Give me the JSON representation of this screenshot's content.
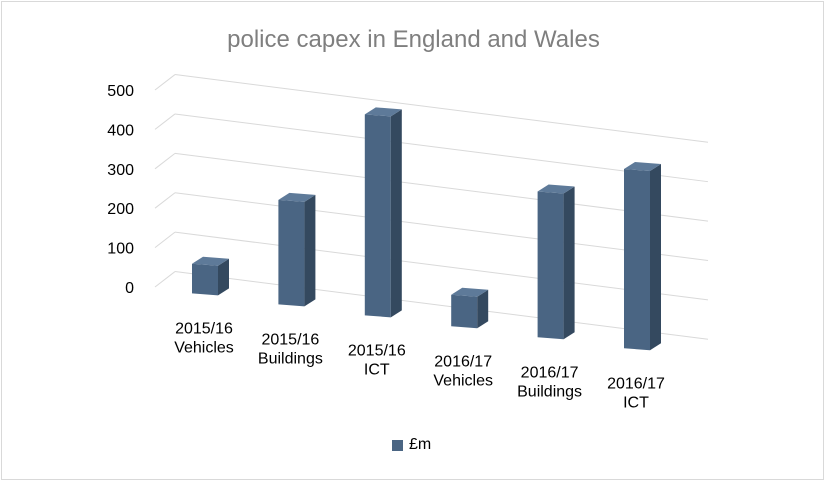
{
  "chart_data": {
    "type": "bar",
    "title": "police capex in England and Wales",
    "categories": [
      [
        "2015/16",
        "Vehicles"
      ],
      [
        "2015/16",
        "Buildings"
      ],
      [
        "2015/16",
        "ICT"
      ],
      [
        "2016/17",
        "Vehicles"
      ],
      [
        "2016/17",
        "Buildings"
      ],
      [
        "2016/17",
        "ICT"
      ]
    ],
    "series": [
      {
        "name": "£m",
        "values": [
          75,
          265,
          510,
          80,
          370,
          455
        ]
      }
    ],
    "ylim": [
      0,
      500
    ],
    "yticks": [
      0,
      100,
      200,
      300,
      400,
      500
    ],
    "grid": true,
    "legend": "bottom",
    "style": "3d-column",
    "colors": {
      "bar": "#4a6583",
      "bar_side": "#34495f",
      "bar_top": "#5e7a99",
      "grid": "#d9d9d9"
    }
  }
}
